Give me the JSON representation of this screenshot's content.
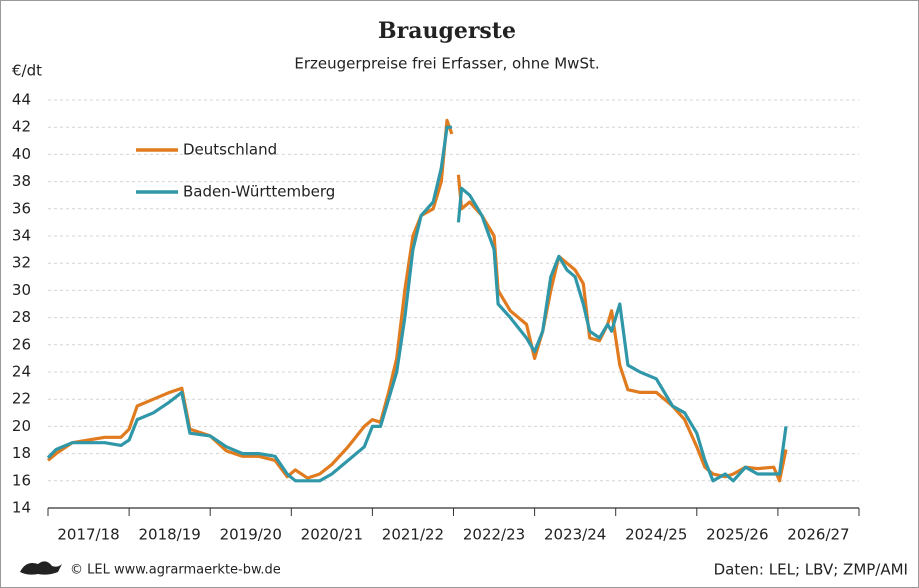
{
  "chart_data": {
    "type": "line",
    "title": "Braugerste",
    "subtitle": "Erzeugerpreise frei Erfasser, ohne MwSt.",
    "y_label": "€/dt",
    "source": "Daten: LEL; LBV; ZMP/AMI",
    "credit": "© LEL www.agrarmaerkte-bw.de",
    "x": [
      0,
      0.1,
      0.3,
      0.5,
      0.7,
      0.9,
      1.0,
      1.1,
      1.3,
      1.5,
      1.65,
      1.75,
      2.0,
      2.2,
      2.4,
      2.6,
      2.8,
      2.95,
      3.05,
      3.2,
      3.35,
      3.5,
      3.7,
      3.9,
      4.0,
      4.1,
      4.2,
      4.3,
      4.4,
      4.5,
      4.6,
      4.75,
      4.85,
      4.92,
      4.98,
      5.02,
      5.06,
      5.1,
      5.2,
      5.35,
      5.5,
      5.55,
      5.7,
      5.9,
      6.0,
      6.1,
      6.2,
      6.3,
      6.4,
      6.5,
      6.6,
      6.68,
      6.8,
      6.9,
      6.95,
      7.05,
      7.15,
      7.3,
      7.5,
      7.7,
      7.85,
      8.0,
      8.1,
      8.2,
      8.35,
      8.45,
      8.6,
      8.75,
      8.95,
      9.02,
      9.1
    ],
    "series": [
      {
        "name": "Deutschland",
        "color": "#e07b1f",
        "values": [
          17.5,
          18.0,
          18.8,
          19.0,
          19.2,
          19.2,
          19.8,
          21.5,
          22.0,
          22.5,
          22.8,
          19.8,
          19.3,
          18.2,
          17.8,
          17.8,
          17.5,
          16.3,
          16.8,
          16.2,
          16.5,
          17.2,
          18.5,
          20.0,
          20.5,
          20.3,
          22.5,
          25,
          30,
          34,
          35.5,
          36,
          38,
          42.5,
          41.5,
          null,
          38.5,
          36,
          36.5,
          35.5,
          34,
          30,
          28.5,
          27.5,
          25.0,
          27,
          30,
          32.5,
          32,
          31.5,
          30.5,
          26.5,
          26.3,
          27.5,
          28.5,
          24.5,
          22.7,
          22.5,
          22.5,
          21.5,
          20.5,
          18.5,
          17.0,
          16.5,
          16.3,
          16.5,
          17.0,
          16.9,
          17.0,
          16.0,
          18.3
        ]
      },
      {
        "name": "Baden-Württemberg",
        "color": "#2f97a8",
        "values": [
          17.7,
          18.3,
          18.8,
          18.8,
          18.8,
          18.6,
          19.0,
          20.5,
          21.0,
          21.8,
          22.5,
          19.5,
          19.3,
          18.5,
          18.0,
          18.0,
          17.8,
          16.5,
          16.0,
          16.0,
          16.0,
          16.5,
          17.5,
          18.5,
          20.0,
          20.0,
          22.0,
          24.0,
          28.0,
          33.0,
          35.5,
          36.5,
          39.0,
          42.0,
          42.0,
          null,
          35.0,
          37.5,
          37.0,
          35.5,
          33.0,
          29.0,
          28.0,
          26.5,
          25.5,
          27.0,
          31.0,
          32.5,
          31.5,
          31.0,
          29.0,
          27.0,
          26.5,
          27.5,
          27.0,
          29.0,
          24.5,
          24.0,
          23.5,
          21.5,
          21.0,
          19.5,
          17.5,
          16.0,
          16.5,
          16.0,
          17.0,
          16.5,
          16.5,
          16.5,
          20.0
        ]
      }
    ],
    "xlim": [
      0,
      10
    ],
    "xticks": [
      {
        "value": 0.5,
        "label": "2017/18"
      },
      {
        "value": 1.5,
        "label": "2018/19"
      },
      {
        "value": 2.5,
        "label": "2019/20"
      },
      {
        "value": 3.5,
        "label": "2020/21"
      },
      {
        "value": 4.5,
        "label": "2021/22"
      },
      {
        "value": 5.5,
        "label": "2022/23"
      },
      {
        "value": 6.5,
        "label": "2023/24"
      },
      {
        "value": 7.5,
        "label": "2024/25"
      },
      {
        "value": 8.5,
        "label": "2025/26"
      },
      {
        "value": 9.5,
        "label": "2026/27"
      }
    ],
    "ylim": [
      14,
      44
    ],
    "yticks": [
      14,
      16,
      18,
      20,
      22,
      24,
      26,
      28,
      30,
      32,
      34,
      36,
      38,
      40,
      42,
      44
    ],
    "grid": true,
    "legend": "upper left"
  }
}
